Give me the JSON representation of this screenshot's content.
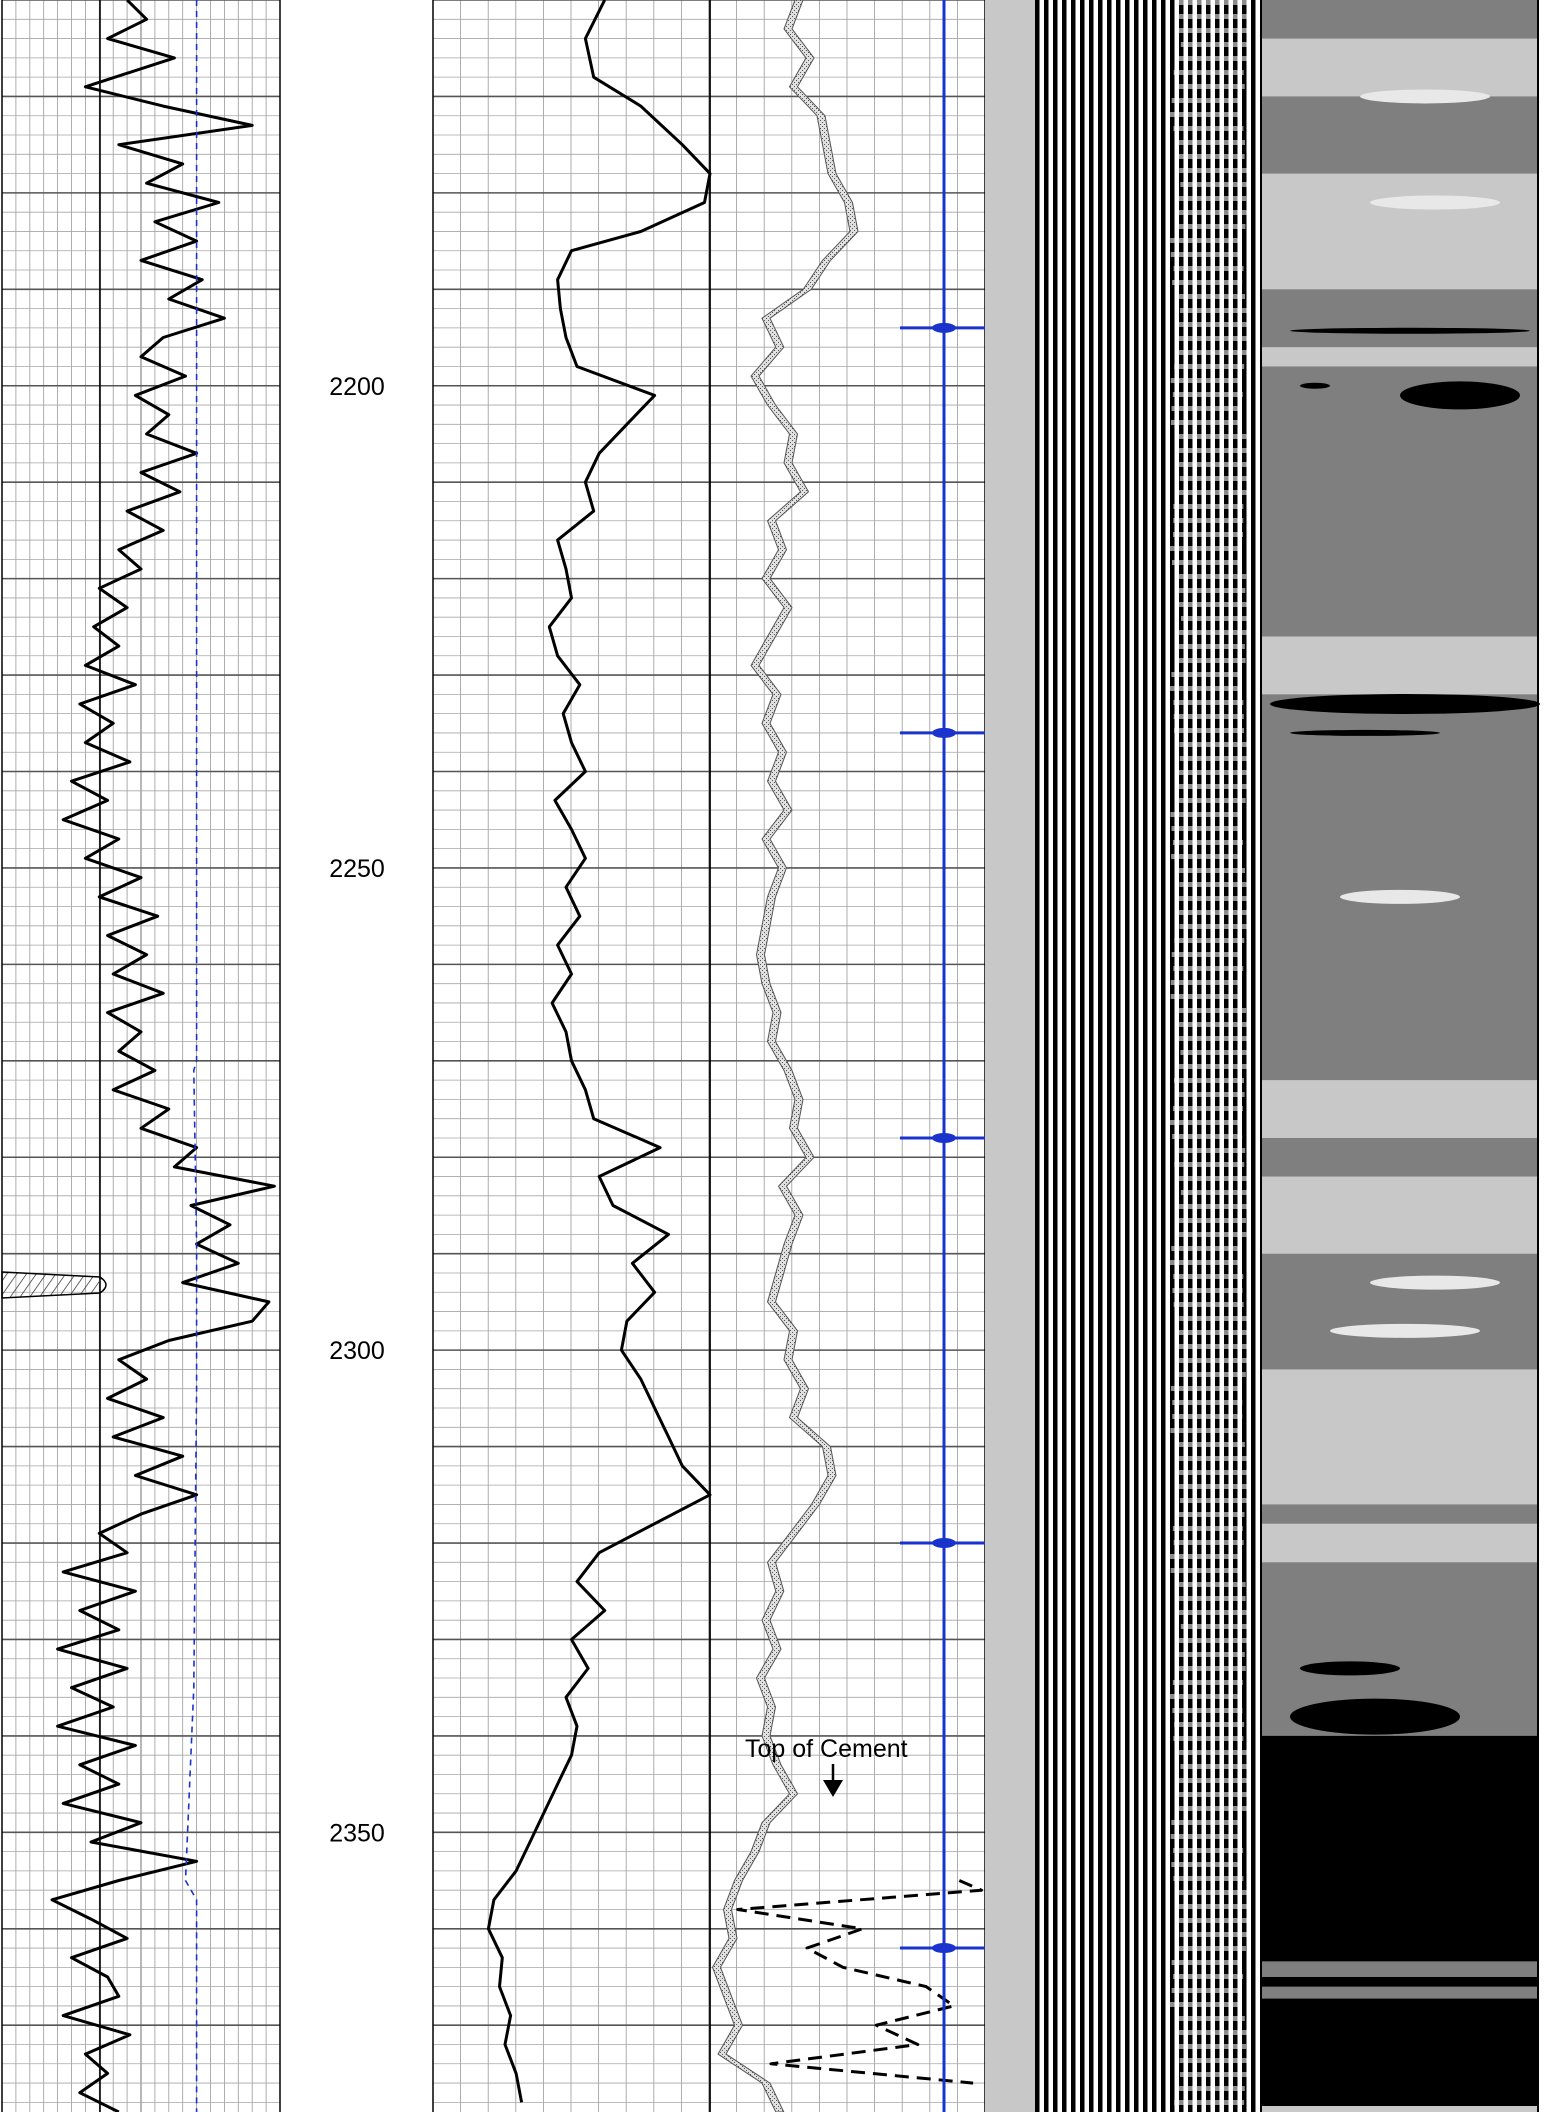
{
  "chart_data": {
    "type": "line",
    "depth_axis": {
      "range": [
        2160,
        2379
      ],
      "ticks": [
        2200,
        2250,
        2300,
        2350
      ],
      "tick_labels": [
        "2200",
        "2250",
        "2300",
        "2350"
      ]
    },
    "tracks": [
      {
        "id": "track-1",
        "grid": true,
        "curves": [
          {
            "style": "solid",
            "color": "#000000",
            "depth": [
              2160,
              2162,
              2164,
              2166,
              2169,
              2171,
              2173,
              2175,
              2177,
              2179,
              2181,
              2183,
              2185,
              2187,
              2189,
              2191,
              2193,
              2195,
              2197,
              2199,
              2201,
              2203,
              2205,
              2207,
              2209,
              2211,
              2213,
              2215,
              2217,
              2219,
              2221,
              2223,
              2225,
              2227,
              2229,
              2231,
              2233,
              2235,
              2237,
              2239,
              2241,
              2243,
              2245,
              2247,
              2249,
              2251,
              2253,
              2255,
              2257,
              2259,
              2261,
              2263,
              2265,
              2267,
              2269,
              2271,
              2273,
              2275,
              2277,
              2279,
              2281,
              2283,
              2285,
              2287,
              2289,
              2291,
              2293,
              2295,
              2297,
              2299,
              2301,
              2303,
              2305,
              2307,
              2309,
              2311,
              2313,
              2315,
              2317,
              2319,
              2321,
              2323,
              2325,
              2327,
              2329,
              2331,
              2333,
              2335,
              2337,
              2339,
              2341,
              2343,
              2345,
              2347,
              2349,
              2351,
              2353,
              2355,
              2357,
              2359,
              2361,
              2363,
              2365,
              2367,
              2369,
              2371,
              2373,
              2375,
              2377,
              2379
            ],
            "values": [
              0.45,
              0.52,
              0.38,
              0.62,
              0.3,
              0.58,
              0.9,
              0.42,
              0.65,
              0.52,
              0.78,
              0.55,
              0.7,
              0.5,
              0.72,
              0.6,
              0.8,
              0.58,
              0.5,
              0.66,
              0.48,
              0.6,
              0.52,
              0.7,
              0.5,
              0.64,
              0.45,
              0.58,
              0.42,
              0.5,
              0.35,
              0.45,
              0.33,
              0.42,
              0.3,
              0.48,
              0.28,
              0.4,
              0.3,
              0.46,
              0.25,
              0.38,
              0.22,
              0.42,
              0.3,
              0.5,
              0.35,
              0.56,
              0.38,
              0.52,
              0.4,
              0.58,
              0.38,
              0.5,
              0.42,
              0.55,
              0.4,
              0.6,
              0.5,
              0.7,
              0.62,
              0.98,
              0.68,
              0.82,
              0.7,
              0.85,
              0.65,
              0.96,
              0.9,
              0.6,
              0.42,
              0.52,
              0.38,
              0.58,
              0.4,
              0.65,
              0.48,
              0.7,
              0.5,
              0.35,
              0.45,
              0.22,
              0.48,
              0.28,
              0.42,
              0.2,
              0.45,
              0.25,
              0.4,
              0.2,
              0.48,
              0.28,
              0.42,
              0.22,
              0.5,
              0.32,
              0.7,
              0.42,
              0.18,
              0.32,
              0.45,
              0.25,
              0.38,
              0.42,
              0.22,
              0.46,
              0.3,
              0.38,
              0.28,
              0.42
            ]
          },
          {
            "style": "dashed",
            "color": "#1a33cc",
            "depth": [
              2160,
              2270,
              2271,
              2289,
              2304,
              2335,
              2355,
              2357,
              2359,
              2379
            ],
            "values": [
              0.7,
              0.7,
              0.69,
              0.7,
              0.7,
              0.69,
              0.66,
              0.7,
              0.7,
              0.7
            ]
          }
        ]
      },
      {
        "id": "track-2",
        "grid": true,
        "curves": [
          {
            "style": "solid",
            "color": "#000000",
            "depth": [
              2160,
              2164,
              2168,
              2171,
              2175,
              2178,
              2181,
              2184,
              2186,
              2189,
              2192,
              2195,
              2198,
              2201,
              2204,
              2207,
              2210,
              2213,
              2216,
              2219,
              2222,
              2225,
              2228,
              2231,
              2234,
              2237,
              2240,
              2243,
              2246,
              2249,
              2252,
              2255,
              2258,
              2261,
              2264,
              2267,
              2270,
              2273,
              2276,
              2279,
              2282,
              2285,
              2288,
              2291,
              2294,
              2297,
              2300,
              2303,
              2306,
              2309,
              2312,
              2315,
              2318,
              2321,
              2324,
              2327,
              2330,
              2333,
              2336,
              2339,
              2342,
              2345,
              2348,
              2351,
              2354,
              2357,
              2360,
              2363,
              2366,
              2369,
              2372,
              2375,
              2378
            ],
            "values": [
              0.62,
              0.55,
              0.58,
              0.75,
              0.9,
              1.0,
              0.98,
              0.75,
              0.5,
              0.45,
              0.46,
              0.48,
              0.52,
              0.8,
              0.7,
              0.6,
              0.55,
              0.58,
              0.45,
              0.48,
              0.5,
              0.42,
              0.45,
              0.53,
              0.47,
              0.5,
              0.55,
              0.44,
              0.5,
              0.55,
              0.48,
              0.53,
              0.45,
              0.5,
              0.43,
              0.48,
              0.5,
              0.55,
              0.58,
              0.82,
              0.6,
              0.65,
              0.85,
              0.72,
              0.8,
              0.7,
              0.68,
              0.75,
              0.8,
              0.85,
              0.9,
              1.0,
              0.8,
              0.6,
              0.52,
              0.62,
              0.5,
              0.56,
              0.48,
              0.52,
              0.5,
              0.45,
              0.4,
              0.35,
              0.3,
              0.22,
              0.2,
              0.25,
              0.24,
              0.28,
              0.26,
              0.3,
              0.32
            ]
          },
          {
            "style": "dashed",
            "color": "#000000",
            "depth": [
              2355,
              2356,
              2358,
              2360,
              2362,
              2364,
              2366,
              2368,
              2370,
              2372,
              2374,
              2376
            ],
            "values": [
              1.9,
              1.98,
              1.1,
              1.55,
              1.35,
              1.48,
              1.78,
              1.88,
              1.6,
              1.75,
              1.22,
              1.95
            ]
          }
        ]
      },
      {
        "id": "track-3",
        "grid": true,
        "curves": [
          {
            "style": "solid",
            "color": "#000000",
            "depth": [
              2160,
              2163,
              2166,
              2169,
              2172,
              2175,
              2178,
              2181,
              2184,
              2187,
              2190,
              2193,
              2196,
              2199,
              2202,
              2205,
              2208,
              2211,
              2214,
              2217,
              2220,
              2223,
              2226,
              2229,
              2232,
              2235,
              2238,
              2241,
              2244,
              2247,
              2250,
              2253,
              2256,
              2259,
              2262,
              2265,
              2268,
              2271,
              2274,
              2277,
              2280,
              2283,
              2286,
              2289,
              2292,
              2295,
              2298,
              2301,
              2304,
              2307,
              2310,
              2313,
              2316,
              2319,
              2322,
              2325,
              2328,
              2331,
              2334,
              2337,
              2340,
              2343,
              2346,
              2349,
              2352,
              2355,
              2358,
              2361,
              2364,
              2367,
              2370,
              2373,
              2376,
              2379
            ],
            "values": [
              0.32,
              0.28,
              0.36,
              0.3,
              0.4,
              0.42,
              0.44,
              0.5,
              0.52,
              0.42,
              0.35,
              0.2,
              0.25,
              0.16,
              0.22,
              0.3,
              0.28,
              0.34,
              0.22,
              0.26,
              0.2,
              0.28,
              0.22,
              0.16,
              0.24,
              0.2,
              0.26,
              0.22,
              0.28,
              0.2,
              0.26,
              0.22,
              0.2,
              0.18,
              0.2,
              0.24,
              0.22,
              0.28,
              0.32,
              0.3,
              0.36,
              0.26,
              0.32,
              0.28,
              0.25,
              0.22,
              0.3,
              0.28,
              0.34,
              0.3,
              0.42,
              0.44,
              0.38,
              0.3,
              0.22,
              0.25,
              0.2,
              0.24,
              0.18,
              0.22,
              0.2,
              0.24,
              0.3,
              0.2,
              0.16,
              0.1,
              0.06,
              0.08,
              0.02,
              0.06,
              0.1,
              0.04,
              0.2,
              0.25
            ]
          }
        ]
      }
    ],
    "tick_curve": {
      "color": "#1a33cc",
      "tick_depths": [
        2194,
        2236,
        2278,
        2320,
        2362
      ]
    },
    "image_tracks": [
      {
        "id": "variable-density-log",
        "colors": [
          "#000000",
          "#ffffff"
        ]
      },
      {
        "id": "cement-map",
        "colors": [
          "#7f7f7f",
          "#c8c8c8",
          "#000000"
        ]
      }
    ],
    "annotations": [
      {
        "text": "Top of Cement",
        "depth": 2349,
        "marker": "down-arrow"
      }
    ]
  }
}
